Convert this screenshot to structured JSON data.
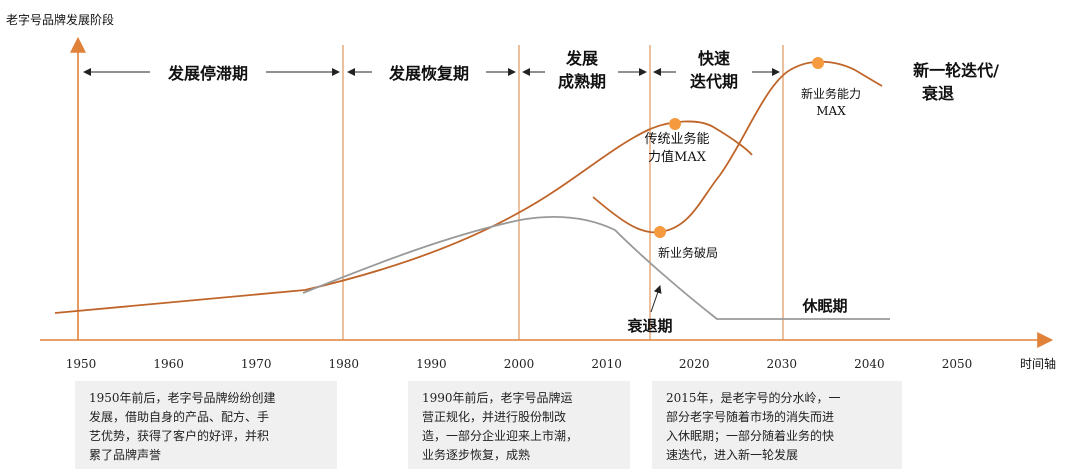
{
  "y_axis_label": "老字号品牌发展阶段",
  "x_axis_label": "时间轴",
  "colors": {
    "accent": "#e0823a",
    "curve": "#c0652a",
    "decline": "#999999",
    "vline": "#d8823f",
    "note_bg": "#f0f0f0"
  },
  "ticks": [
    "1950",
    "1960",
    "1970",
    "1980",
    "1990",
    "2000",
    "2010",
    "2020",
    "2030",
    "2040",
    "2050"
  ],
  "stages": {
    "stagnation": "发展停滞期",
    "recovery": "发展恢复期",
    "mature_1": "发展",
    "mature_2": "成熟期",
    "rapid_1": "快速",
    "rapid_2": "迭代期",
    "new_round_1": "新一轮迭代/",
    "new_round_2": "衰退"
  },
  "annotations": {
    "trad_max_1": "传统业务能",
    "trad_max_2": "力值MAX",
    "new_max_1": "新业务能力",
    "new_max_2": "MAX",
    "new_breakout": "新业务破局",
    "decline": "衰退期",
    "dormant": "休眠期"
  },
  "notes": [
    {
      "lines": [
        "1950年前后，老字号品牌纷纷创建",
        "发展，借助自身的产品、配方、手",
        "艺优势，获得了客户的好评，并积",
        "累了品牌声誉"
      ]
    },
    {
      "lines": [
        "1990年前后，老字号品牌运",
        "营正规化，并进行股份制改",
        "造，一部分企业迎来上市潮，",
        "业务逐步恢复，成熟"
      ]
    },
    {
      "lines": [
        "2015年，是老字号的分水岭，一",
        "部分老字号随着市场的消失而进",
        "入休眠期；一部分随着业务的快",
        "速迭代，进入新一轮发展"
      ]
    }
  ]
}
